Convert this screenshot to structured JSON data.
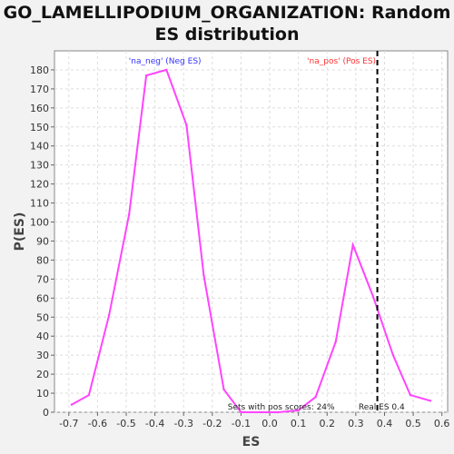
{
  "title_line1": "GO_LAMELLIPODIUM_ORGANIZATION: Random",
  "title_line2": "ES distribution",
  "chart_data": {
    "type": "line",
    "xlabel": "ES",
    "ylabel": "P(ES)",
    "xlim": [
      -0.75,
      0.62
    ],
    "ylim": [
      0,
      190
    ],
    "xticks": [
      -0.7,
      -0.6,
      -0.5,
      -0.4,
      -0.3,
      -0.2,
      -0.1,
      0.0,
      0.1,
      0.2,
      0.3,
      0.4,
      0.5,
      0.6
    ],
    "xtick_labels": [
      "-0.7",
      "-0.6",
      "-0.5",
      "-0.4",
      "-0.3",
      "-0.2",
      "-0.1",
      "0.0",
      "0.1",
      "0.2",
      "0.3",
      "0.4",
      "0.5",
      "0.6"
    ],
    "yticks": [
      0,
      10,
      20,
      30,
      40,
      50,
      60,
      70,
      80,
      90,
      100,
      110,
      120,
      130,
      140,
      150,
      160,
      170,
      180
    ],
    "grid": true,
    "series": [
      {
        "color": "#ff44ff",
        "x": [
          -0.69,
          -0.63,
          -0.56,
          -0.49,
          -0.43,
          -0.36,
          -0.29,
          -0.23,
          -0.16,
          -0.1,
          -0.03,
          0.03,
          0.1,
          0.16,
          0.23,
          0.29,
          0.36,
          0.43,
          0.49,
          0.56
        ],
        "y": [
          4,
          9,
          51,
          104,
          177,
          180,
          151,
          72,
          12,
          0,
          0,
          0,
          1,
          8,
          37,
          88,
          61,
          30,
          9,
          6
        ]
      }
    ],
    "real_es": 0.375,
    "real_es_label": "Real ES 0.4",
    "neg_label": "'na_neg' (Neg ES)",
    "neg_color": "#3333ff",
    "pos_label": "'na_pos' (Pos ES)",
    "pos_color": "#ff3333",
    "pos_scores_note": "Sets with pos scores: 24%"
  }
}
